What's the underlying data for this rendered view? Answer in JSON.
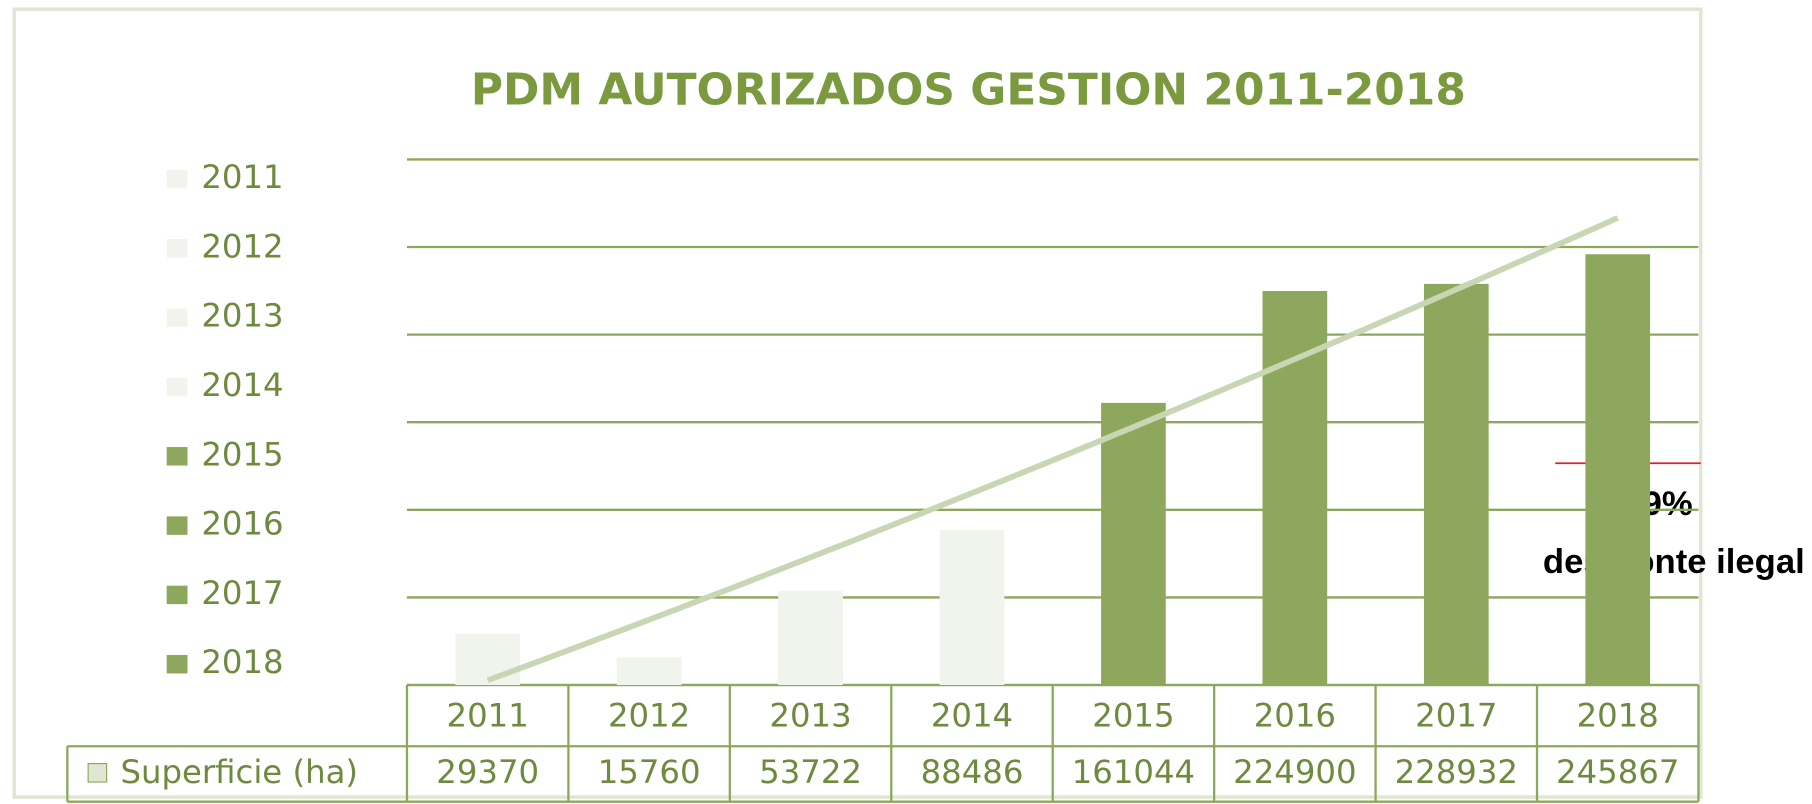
{
  "chart_data": {
    "type": "bar",
    "title": "PDM AUTORIZADOS GESTION 2011-2018",
    "categories": [
      "2011",
      "2012",
      "2013",
      "2014",
      "2015",
      "2016",
      "2017",
      "2018"
    ],
    "row_label": "Superficie (ha)",
    "values": [
      29370,
      15760,
      53722,
      88486,
      161044,
      224900,
      228932,
      245867
    ],
    "colors": [
      "#f1f4ec",
      "#f1f4ec",
      "#f1f4ec",
      "#f1f4ec",
      "#8da85c",
      "#8da85c",
      "#8da85c",
      "#8da85c"
    ],
    "ylim": [
      0,
      300000
    ],
    "yticks": [
      0,
      50000,
      100000,
      150000,
      200000,
      250000,
      300000
    ],
    "grid": true,
    "trendline": "polynomial",
    "annotation": {
      "percent": "49%",
      "text": "desmonte ilegal"
    }
  }
}
